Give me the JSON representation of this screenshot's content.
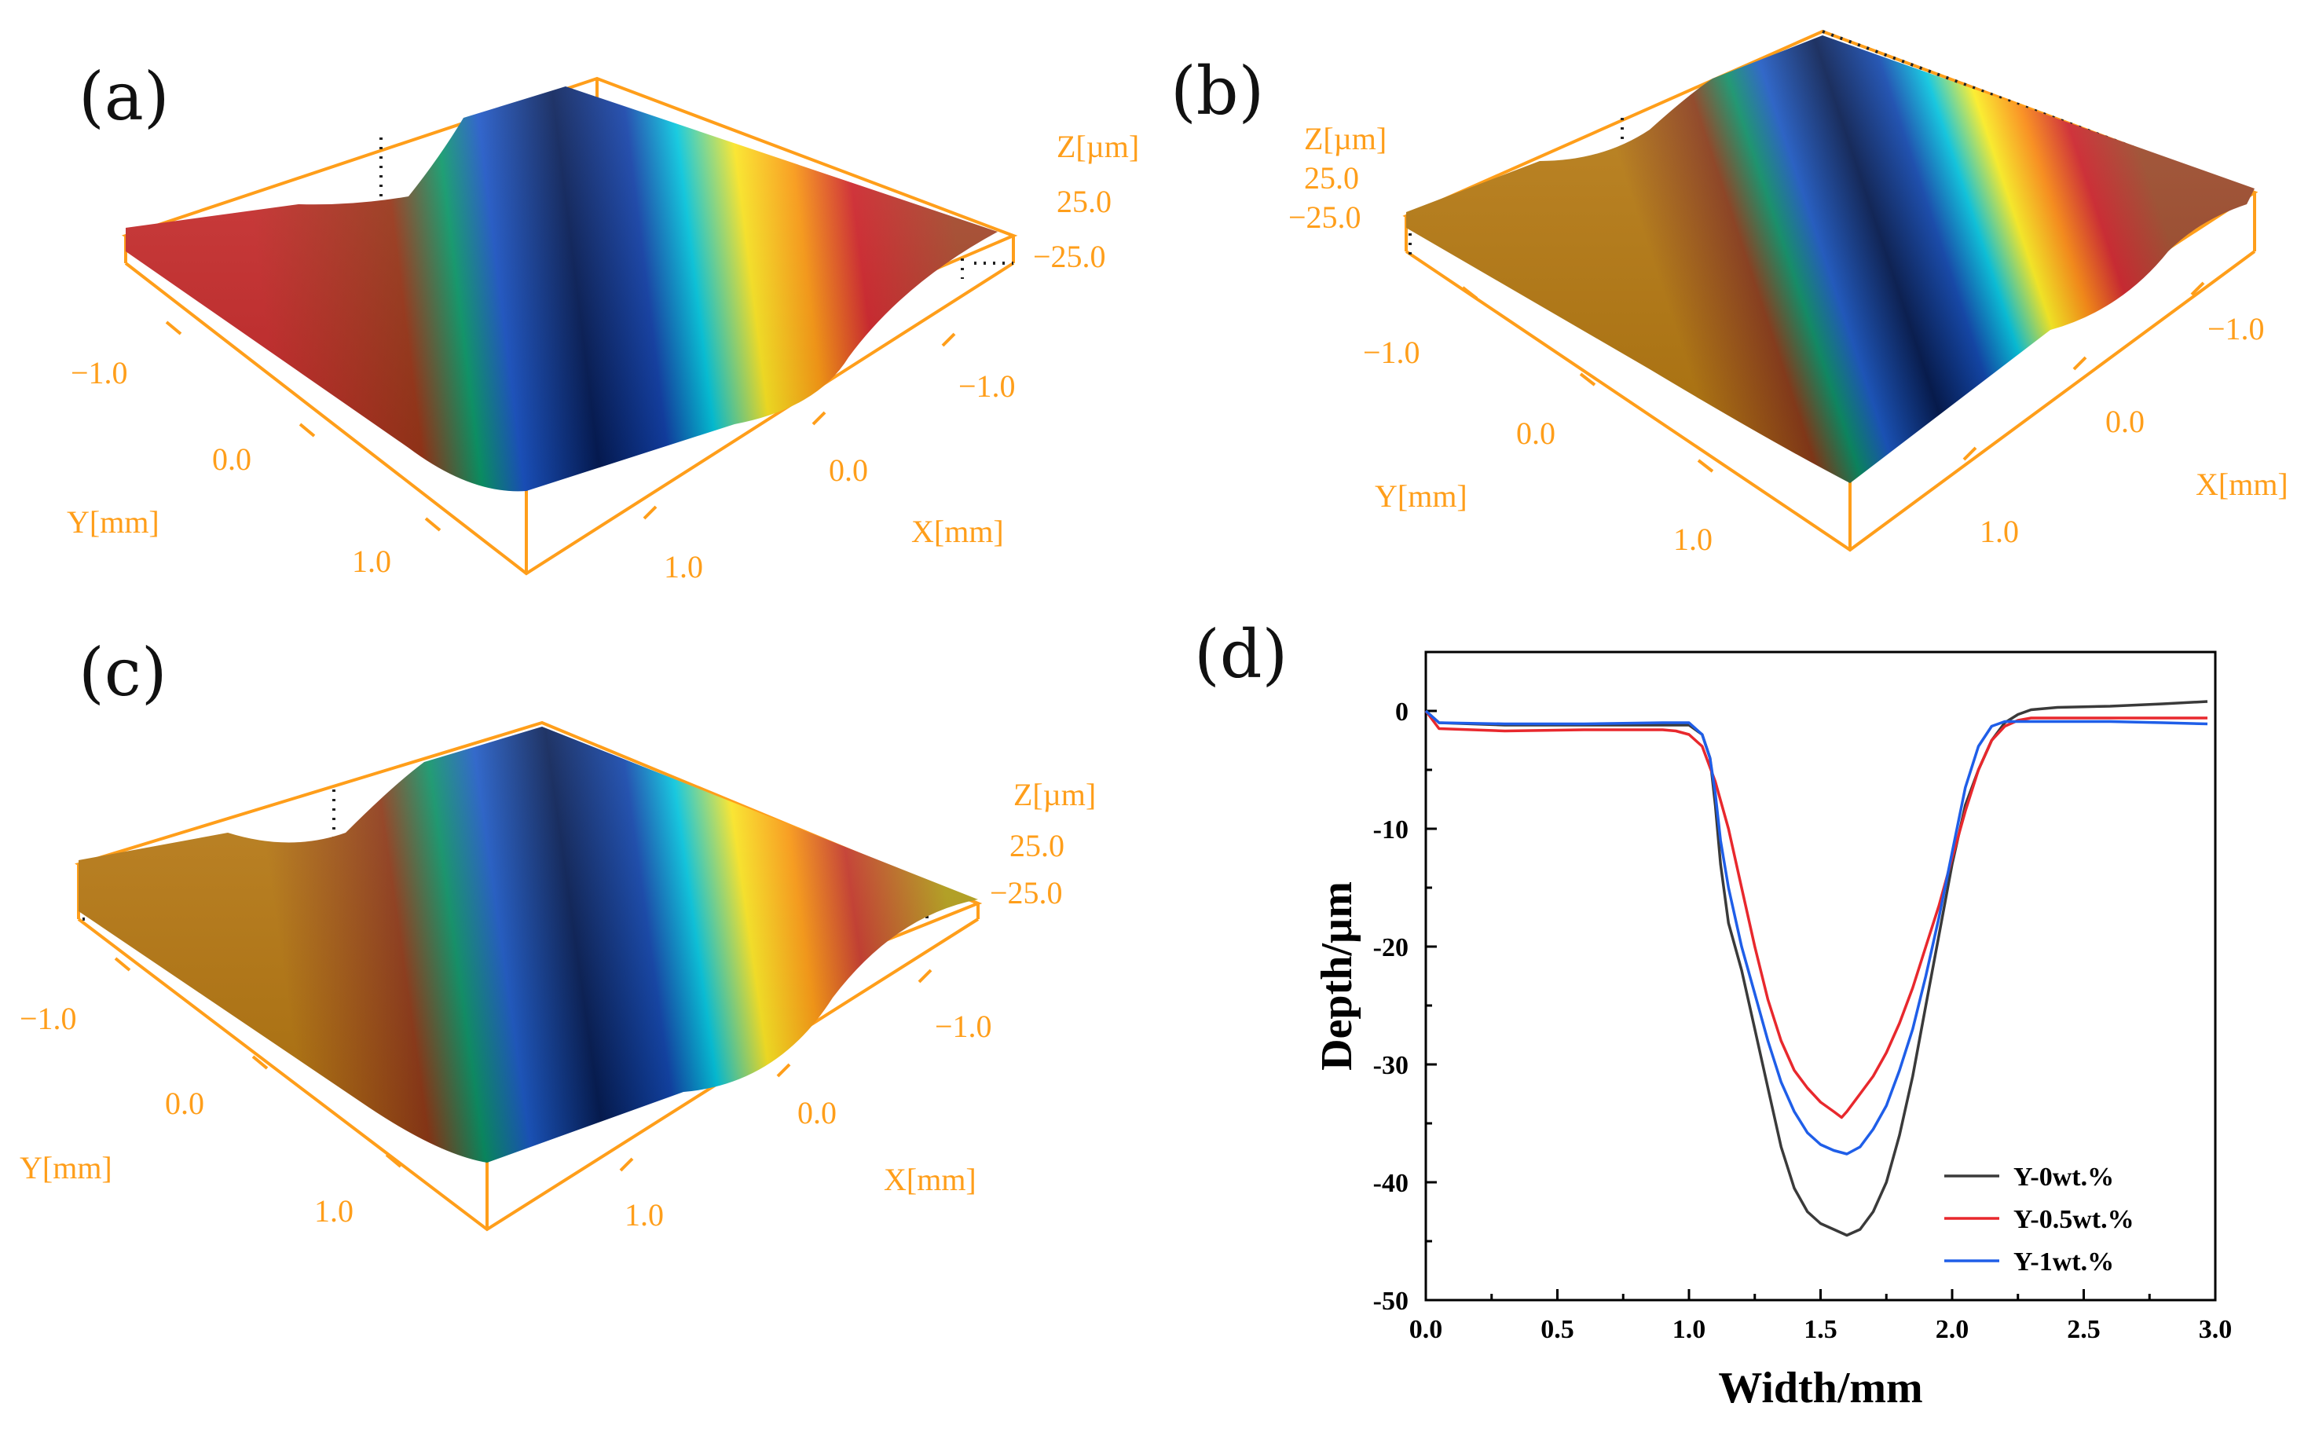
{
  "panels": {
    "a": {
      "label": "(a)",
      "z_axis_label": "Z[µm]",
      "z_top": "25.0",
      "z_bottom": "−25.0",
      "x_axis_label": "X[mm]",
      "y_axis_label": "Y[mm]",
      "x_ticks": [
        "−1.0",
        "0.0",
        "1.0"
      ],
      "y_ticks": [
        "−1.0",
        "0.0",
        "1.0"
      ]
    },
    "b": {
      "label": "(b)",
      "z_axis_label": "Z[µm]",
      "z_top": "25.0",
      "z_bottom": "−25.0",
      "x_axis_label": "X[mm]",
      "y_axis_label": "Y[mm]",
      "x_ticks": [
        "−1.0",
        "0.0",
        "1.0"
      ],
      "y_ticks": [
        "−1.0",
        "0.0",
        "1.0"
      ]
    },
    "c": {
      "label": "(c)",
      "z_axis_label": "Z[µm]",
      "z_top": "25.0",
      "z_bottom": "−25.0",
      "x_axis_label": "X[mm]",
      "y_axis_label": "Y[mm]",
      "x_ticks": [
        "−1.0",
        "0.0",
        "1.0"
      ],
      "y_ticks": [
        "−1.0",
        "0.0",
        "1.0"
      ]
    },
    "d": {
      "label": "(d)"
    }
  },
  "colors": {
    "axis_orange": "#ff9e1a",
    "black_series": "#3a3a3a",
    "red_series": "#e8282d",
    "blue_series": "#1f5ee8"
  },
  "chart_data": {
    "type": "line",
    "title": "",
    "xlabel": "Width/mm",
    "ylabel": "Depth/µm",
    "xlim": [
      0,
      3.0
    ],
    "ylim": [
      -50,
      5
    ],
    "x_ticks": [
      0,
      0.5,
      1.0,
      1.5,
      2.0,
      2.5,
      3.0
    ],
    "x_tick_labels": [
      "0.0",
      "0.5",
      "1.0",
      "1.5",
      "2.0",
      "2.5",
      "3.0"
    ],
    "y_ticks": [
      0,
      -10,
      -20,
      -30,
      -40,
      -50
    ],
    "y_tick_labels": [
      "0",
      "-10",
      "-20",
      "-30",
      "-40",
      "-50"
    ],
    "legend_position": "bottom-right",
    "series": [
      {
        "name": "Y-0wt.%",
        "color": "#3a3a3a",
        "x": [
          0,
          0.05,
          0.3,
          0.6,
          0.9,
          1.0,
          1.05,
          1.08,
          1.1,
          1.12,
          1.15,
          1.2,
          1.25,
          1.3,
          1.35,
          1.4,
          1.45,
          1.5,
          1.55,
          1.6,
          1.65,
          1.7,
          1.75,
          1.8,
          1.85,
          1.9,
          1.95,
          2.0,
          2.05,
          2.1,
          2.15,
          2.2,
          2.25,
          2.3,
          2.4,
          2.6,
          2.8,
          2.97
        ],
        "y": [
          0,
          -1,
          -1.2,
          -1.2,
          -1.2,
          -1.2,
          -2,
          -4,
          -8,
          -13,
          -18,
          -22,
          -27,
          -32,
          -37,
          -40.5,
          -42.5,
          -43.5,
          -44,
          -44.5,
          -44,
          -42.5,
          -40,
          -36,
          -31,
          -25,
          -19,
          -13,
          -8,
          -5,
          -2.5,
          -1,
          -0.3,
          0.1,
          0.3,
          0.4,
          0.6,
          0.8
        ]
      },
      {
        "name": "Y-0.5wt.%",
        "color": "#e8282d",
        "x": [
          0,
          0.05,
          0.3,
          0.6,
          0.9,
          0.95,
          1.0,
          1.05,
          1.1,
          1.15,
          1.2,
          1.25,
          1.3,
          1.35,
          1.4,
          1.45,
          1.5,
          1.55,
          1.58,
          1.6,
          1.65,
          1.7,
          1.75,
          1.8,
          1.85,
          1.9,
          1.95,
          2.0,
          2.05,
          2.1,
          2.15,
          2.2,
          2.25,
          2.3,
          2.4,
          2.6,
          2.8,
          2.97
        ],
        "y": [
          0,
          -1.5,
          -1.7,
          -1.6,
          -1.6,
          -1.7,
          -2,
          -3,
          -6,
          -10,
          -15,
          -20,
          -24.5,
          -28,
          -30.5,
          -32,
          -33.2,
          -34,
          -34.5,
          -34,
          -32.5,
          -31,
          -29,
          -26.5,
          -23.5,
          -20,
          -16.5,
          -12.5,
          -8.5,
          -5,
          -2.5,
          -1.3,
          -0.8,
          -0.6,
          -0.6,
          -0.6,
          -0.6,
          -0.6
        ]
      },
      {
        "name": "Y-1wt.%",
        "color": "#1f5ee8",
        "x": [
          0,
          0.05,
          0.3,
          0.6,
          0.9,
          1.0,
          1.05,
          1.08,
          1.1,
          1.12,
          1.15,
          1.2,
          1.25,
          1.3,
          1.35,
          1.4,
          1.45,
          1.5,
          1.55,
          1.6,
          1.65,
          1.7,
          1.75,
          1.8,
          1.85,
          1.9,
          1.95,
          2.0,
          2.05,
          2.1,
          2.15,
          2.2,
          2.25,
          2.3,
          2.4,
          2.6,
          2.8,
          2.97
        ],
        "y": [
          0,
          -1,
          -1.1,
          -1.1,
          -1,
          -1,
          -2,
          -4,
          -7,
          -11,
          -15,
          -20,
          -24,
          -28,
          -31.5,
          -34,
          -35.8,
          -36.8,
          -37.3,
          -37.6,
          -37,
          -35.5,
          -33.5,
          -30.5,
          -27,
          -22.5,
          -17.5,
          -12,
          -6.5,
          -3,
          -1.3,
          -0.9,
          -0.9,
          -0.9,
          -0.9,
          -0.9,
          -1,
          -1.1
        ]
      }
    ]
  }
}
